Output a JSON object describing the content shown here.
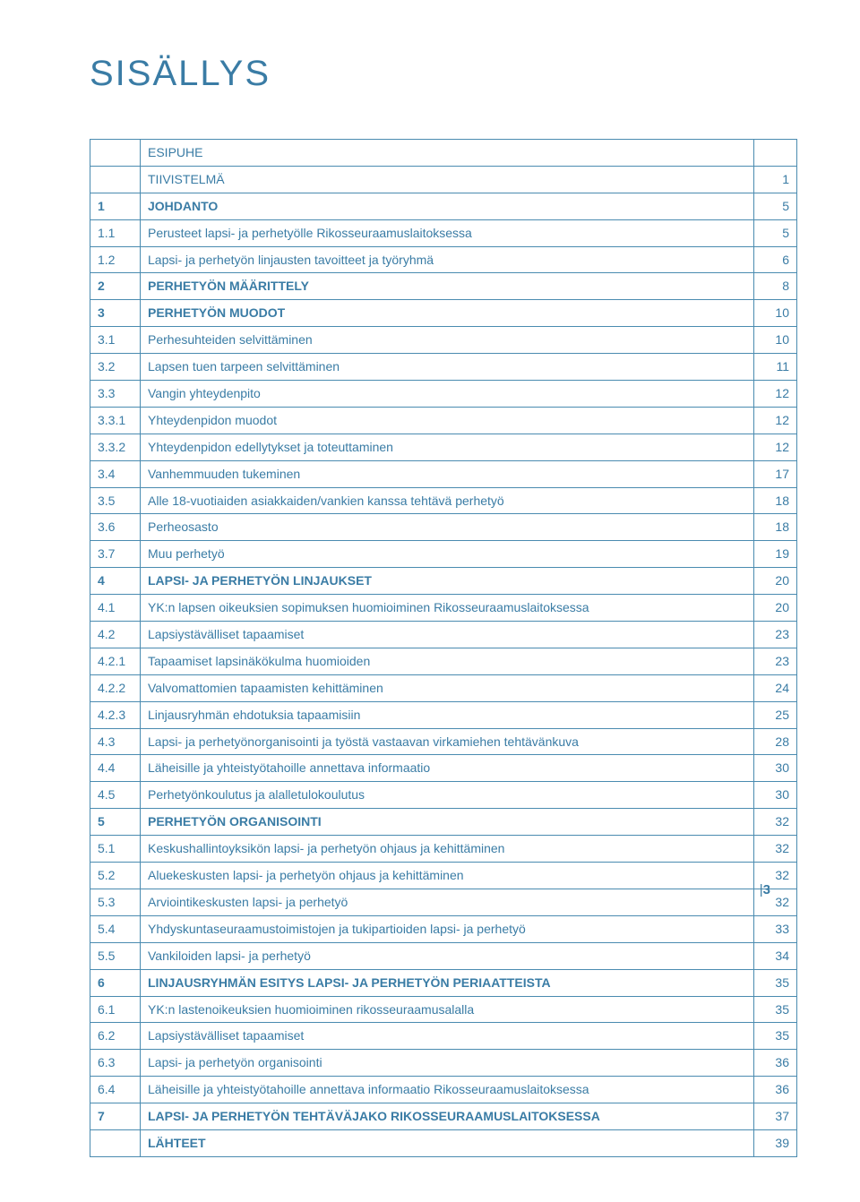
{
  "colors": {
    "text": "#3a7ca5",
    "border": "#4a8bb0",
    "background": "#ffffff"
  },
  "typography": {
    "title_fontsize": 40,
    "title_weight": 300,
    "cell_fontsize": 14
  },
  "page_title": "SISÄLLYS",
  "side_page": "3",
  "col_widths": {
    "num": 56,
    "page": 48
  },
  "rows": [
    {
      "num": "",
      "title": "ESIPUHE",
      "page": "",
      "bold_num": false,
      "bold_title": false
    },
    {
      "num": "",
      "title": "TIIVISTELMÄ",
      "page": "1",
      "bold_num": false,
      "bold_title": false
    },
    {
      "num": "1",
      "title": "JOHDANTO",
      "page": "5",
      "bold_num": true,
      "bold_title": true
    },
    {
      "num": "1.1",
      "title": "Perusteet lapsi- ja perhetyölle Rikosseuraamuslaitoksessa",
      "page": "5",
      "bold_num": false,
      "bold_title": false
    },
    {
      "num": "1.2",
      "title": "Lapsi- ja perhetyön linjausten tavoitteet ja työryhmä",
      "page": "6",
      "bold_num": false,
      "bold_title": false
    },
    {
      "num": "2",
      "title": "PERHETYÖN MÄÄRITTELY",
      "page": "8",
      "bold_num": true,
      "bold_title": true
    },
    {
      "num": "3",
      "title": "PERHETYÖN MUODOT",
      "page": "10",
      "bold_num": true,
      "bold_title": true
    },
    {
      "num": "3.1",
      "title": "Perhesuhteiden selvittäminen",
      "page": "10",
      "bold_num": false,
      "bold_title": false
    },
    {
      "num": "3.2",
      "title": "Lapsen tuen tarpeen selvittäminen",
      "page": "11",
      "bold_num": false,
      "bold_title": false
    },
    {
      "num": "3.3",
      "title": "Vangin yhteydenpito",
      "page": "12",
      "bold_num": false,
      "bold_title": false
    },
    {
      "num": "3.3.1",
      "title": "Yhteydenpidon muodot",
      "page": "12",
      "bold_num": false,
      "bold_title": false
    },
    {
      "num": "3.3.2",
      "title": "Yhteydenpidon edellytykset ja toteuttaminen",
      "page": "12",
      "bold_num": false,
      "bold_title": false
    },
    {
      "num": "3.4",
      "title": "Vanhemmuuden tukeminen",
      "page": "17",
      "bold_num": false,
      "bold_title": false
    },
    {
      "num": "3.5",
      "title": "Alle 18-vuotiaiden asiakkaiden/vankien kanssa tehtävä perhetyö",
      "page": "18",
      "bold_num": false,
      "bold_title": false
    },
    {
      "num": "3.6",
      "title": "Perheosasto",
      "page": "18",
      "bold_num": false,
      "bold_title": false
    },
    {
      "num": "3.7",
      "title": "Muu perhetyö",
      "page": "19",
      "bold_num": false,
      "bold_title": false
    },
    {
      "num": "4",
      "title": "LAPSI- JA PERHETYÖN LINJAUKSET",
      "page": "20",
      "bold_num": true,
      "bold_title": true
    },
    {
      "num": "4.1",
      "title": "YK:n  lapsen oikeuksien sopimuksen huomioiminen Rikosseuraamuslaitoksessa",
      "page": "20",
      "bold_num": false,
      "bold_title": false
    },
    {
      "num": "4.2",
      "title": "Lapsiystävälliset tapaamiset",
      "page": "23",
      "bold_num": false,
      "bold_title": false
    },
    {
      "num": "4.2.1",
      "title": "Tapaamiset lapsinäkökulma huomioiden",
      "page": "23",
      "bold_num": false,
      "bold_title": false
    },
    {
      "num": "4.2.2",
      "title": "Valvomattomien tapaamisten kehittäminen",
      "page": "24",
      "bold_num": false,
      "bold_title": false
    },
    {
      "num": "4.2.3",
      "title": "Linjausryhmän ehdotuksia tapaamisiin",
      "page": "25",
      "bold_num": false,
      "bold_title": false
    },
    {
      "num": "4.3",
      "title": "Lapsi- ja perhetyönorganisointi ja työstä vastaavan virkamiehen tehtävänkuva",
      "page": "28",
      "bold_num": false,
      "bold_title": false
    },
    {
      "num": "4.4",
      "title": "Läheisille ja yhteistyötahoille annettava informaatio",
      "page": "30",
      "bold_num": false,
      "bold_title": false
    },
    {
      "num": "4.5",
      "title": "Perhetyönkoulutus ja alalletulokoulutus",
      "page": "30",
      "bold_num": false,
      "bold_title": false
    },
    {
      "num": "5",
      "title": "PERHETYÖN ORGANISOINTI",
      "page": "32",
      "bold_num": true,
      "bold_title": true
    },
    {
      "num": "5.1",
      "title": "Keskushallintoyksikön lapsi- ja perhetyön ohjaus ja kehittäminen",
      "page": "32",
      "bold_num": false,
      "bold_title": false
    },
    {
      "num": "5.2",
      "title": "Aluekeskusten lapsi- ja perhetyön ohjaus ja kehittäminen",
      "page": "32",
      "bold_num": false,
      "bold_title": false
    },
    {
      "num": "5.3",
      "title": "Arviointikeskusten lapsi- ja perhetyö",
      "page": "32",
      "bold_num": false,
      "bold_title": false
    },
    {
      "num": "5.4",
      "title": "Yhdyskuntaseuraamustoimistojen  ja tukipartioiden lapsi- ja perhetyö",
      "page": "33",
      "bold_num": false,
      "bold_title": false
    },
    {
      "num": "5.5",
      "title": "Vankiloiden lapsi- ja perhetyö",
      "page": "34",
      "bold_num": false,
      "bold_title": false
    },
    {
      "num": "6",
      "title": "LINJAUSRYHMÄN ESITYS LAPSI- JA PERHETYÖN PERIAATTEISTA",
      "page": "35",
      "bold_num": true,
      "bold_title": true
    },
    {
      "num": "6.1",
      "title": "YK:n lastenoikeuksien huomioiminen rikosseuraamusalalla",
      "page": "35",
      "bold_num": false,
      "bold_title": false
    },
    {
      "num": "6.2",
      "title": "Lapsiystävälliset tapaamiset",
      "page": "35",
      "bold_num": false,
      "bold_title": false
    },
    {
      "num": "6.3",
      "title": "Lapsi- ja perhetyön organisointi",
      "page": "36",
      "bold_num": false,
      "bold_title": false
    },
    {
      "num": "6.4",
      "title": "Läheisille ja yhteistyötahoille annettava informaatio Rikosseuraamuslaitoksessa",
      "page": "36",
      "bold_num": false,
      "bold_title": false
    },
    {
      "num": "7",
      "title": "LAPSI- JA PERHETYÖN TEHTÄVÄJAKO RIKOSSEURAAMUSLAITOKSESSA",
      "page": "37",
      "bold_num": true,
      "bold_title": true
    },
    {
      "num": "",
      "title": "LÄHTEET",
      "page": "39",
      "bold_num": false,
      "bold_title": true
    }
  ]
}
